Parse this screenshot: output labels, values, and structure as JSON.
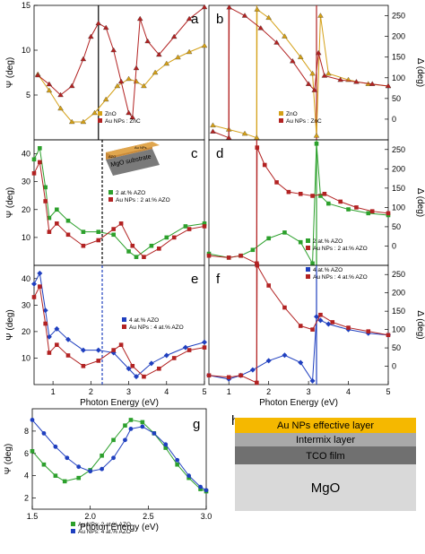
{
  "colors": {
    "zno": "#d4a017",
    "au_np": "#b22222",
    "azo2": "#2ca02c",
    "azo4": "#1f3fbf",
    "au_layer": "#f5b800",
    "intermix": "#a9a9a9",
    "tco": "#707070",
    "mgo": "#d9d9d9"
  },
  "inset": {
    "texts": [
      "MgO substrate",
      "AZO",
      "Au NPs"
    ]
  },
  "stack": {
    "layers": [
      "Au NPs effective layer",
      "Intermix layer",
      "TCO film",
      "MgO"
    ]
  },
  "chart_data": [
    {
      "panel": "a",
      "type": "line",
      "ylabel": "Ψ (deg)",
      "ylim": [
        0,
        15
      ],
      "yticks": [
        "5",
        "10",
        "15"
      ],
      "xlim": [
        0.5,
        5
      ],
      "xticks": [],
      "vline": [
        2.2
      ],
      "legend": [
        "ZnO",
        "Au NPs : ZnC"
      ],
      "series": [
        {
          "name": "ZnO",
          "color": "zno",
          "x": [
            0.6,
            0.9,
            1.2,
            1.5,
            1.8,
            2.1,
            2.4,
            2.7,
            3.0,
            3.2,
            3.4,
            3.7,
            4.0,
            4.3,
            4.6,
            5.0
          ],
          "y": [
            7.3,
            5.5,
            3.5,
            2.0,
            2.0,
            3.0,
            4.5,
            6.0,
            6.8,
            6.5,
            6.0,
            7.5,
            8.5,
            9.2,
            9.8,
            10.5
          ]
        },
        {
          "name": "Au NPs : ZnC",
          "color": "au_np",
          "x": [
            0.6,
            0.9,
            1.2,
            1.5,
            1.8,
            2.0,
            2.2,
            2.4,
            2.6,
            2.8,
            3.0,
            3.1,
            3.2,
            3.3,
            3.5,
            3.8,
            4.2,
            4.6,
            5.0
          ],
          "y": [
            7.2,
            6.2,
            5.0,
            6.0,
            9.0,
            11.5,
            13.0,
            12.5,
            10.0,
            6.5,
            3.0,
            2.5,
            8.0,
            13.5,
            11.0,
            9.5,
            11.5,
            13.5,
            14.8
          ]
        }
      ]
    },
    {
      "panel": "b",
      "type": "line",
      "y2label": "Δ (deg)",
      "ylim": [
        -50,
        275
      ],
      "yticks": [
        "0",
        "50",
        "100",
        "150",
        "200",
        "250"
      ],
      "xlim": [
        0.5,
        5
      ],
      "xticks": [],
      "vline": [
        1.0,
        1.7,
        3.2
      ],
      "legend": [
        "ZnO",
        "Au NPs : ZnC"
      ],
      "series": [
        {
          "name": "ZnO",
          "color": "zno",
          "x": [
            0.6,
            1.0,
            1.4,
            1.7,
            1.71,
            2.0,
            2.4,
            2.8,
            3.1,
            3.2,
            3.3,
            3.5,
            4.0,
            4.5,
            5.0
          ],
          "y": [
            -15,
            -25,
            -35,
            -45,
            265,
            245,
            200,
            150,
            110,
            -40,
            250,
            110,
            95,
            85,
            80
          ]
        },
        {
          "name": "Au NPs : ZnC",
          "color": "au_np",
          "x": [
            0.6,
            1.0,
            1.01,
            1.4,
            1.8,
            2.2,
            2.6,
            3.0,
            3.15,
            3.25,
            3.4,
            3.8,
            4.2,
            4.6,
            5.0
          ],
          "y": [
            -30,
            -45,
            270,
            250,
            220,
            185,
            140,
            85,
            70,
            160,
            105,
            95,
            90,
            85,
            80
          ]
        }
      ]
    },
    {
      "panel": "c",
      "type": "line",
      "ylabel": "Ψ (deg)",
      "ylim": [
        0,
        45
      ],
      "yticks": [
        "10",
        "20",
        "30",
        "40"
      ],
      "xlim": [
        0.5,
        5
      ],
      "xticks": [],
      "vline": [
        2.3
      ],
      "legend": [
        "2 at.% AZO",
        "Au NPs : 2 at.% AZO"
      ],
      "series": [
        {
          "name": "2 at.% AZO",
          "color": "azo2",
          "x": [
            0.5,
            0.65,
            0.8,
            0.9,
            1.1,
            1.4,
            1.8,
            2.2,
            2.6,
            3.0,
            3.2,
            3.6,
            4.0,
            4.5,
            5.0
          ],
          "y": [
            38,
            42,
            28,
            17,
            20,
            16,
            12,
            12,
            11,
            5,
            3,
            7,
            10,
            14,
            15
          ]
        },
        {
          "name": "Au NPs : 2 at.% AZO",
          "color": "au_np",
          "x": [
            0.5,
            0.65,
            0.8,
            0.9,
            1.1,
            1.4,
            1.8,
            2.2,
            2.6,
            2.8,
            3.1,
            3.4,
            3.8,
            4.2,
            4.6,
            5.0
          ],
          "y": [
            33,
            37,
            23,
            12,
            15,
            11,
            7,
            9,
            13,
            15,
            7,
            3,
            6,
            10,
            13,
            14
          ]
        }
      ]
    },
    {
      "panel": "d",
      "type": "line",
      "y2label": "Δ (deg)",
      "ylim": [
        -50,
        275
      ],
      "yticks": [
        "0",
        "50",
        "100",
        "150",
        "200",
        "250"
      ],
      "xlim": [
        0.5,
        5
      ],
      "xticks": [],
      "vline": [
        1.7,
        3.2
      ],
      "legend": [
        "2 at.% AZO",
        "Au NPs : 2 at.% AZO"
      ],
      "series": [
        {
          "name": "2 at.% AZO",
          "color": "azo2",
          "x": [
            0.5,
            1.0,
            1.3,
            1.6,
            2.0,
            2.4,
            2.8,
            3.1,
            3.2,
            3.3,
            3.5,
            4.0,
            4.5,
            5.0
          ],
          "y": [
            -20,
            -30,
            -25,
            -10,
            20,
            35,
            10,
            -45,
            265,
            130,
            110,
            95,
            85,
            80
          ]
        },
        {
          "name": "Au NPs : 2 at.% AZO",
          "color": "au_np",
          "x": [
            0.5,
            1.0,
            1.3,
            1.7,
            1.71,
            1.9,
            2.2,
            2.5,
            2.8,
            3.1,
            3.4,
            3.8,
            4.2,
            4.6,
            5.0
          ],
          "y": [
            -25,
            -30,
            -25,
            -45,
            255,
            210,
            165,
            140,
            135,
            130,
            135,
            115,
            100,
            90,
            85
          ]
        }
      ]
    },
    {
      "panel": "e",
      "type": "line",
      "ylabel": "Ψ (deg)",
      "xlabel": "Photon Energy (eV)",
      "ylim": [
        0,
        45
      ],
      "yticks": [
        "10",
        "20",
        "30",
        "40"
      ],
      "xlim": [
        0.5,
        5
      ],
      "xticks": [
        "1",
        "2",
        "3",
        "4",
        "5"
      ],
      "vline": [
        2.3
      ],
      "legend": [
        "4 at.% AZO",
        "Au NPs : 4 at.% AZO"
      ],
      "series": [
        {
          "name": "4 at.% AZO",
          "color": "azo4",
          "x": [
            0.5,
            0.65,
            0.8,
            0.9,
            1.1,
            1.4,
            1.8,
            2.2,
            2.6,
            3.0,
            3.2,
            3.6,
            4.0,
            4.5,
            5.0
          ],
          "y": [
            38,
            42,
            28,
            18,
            21,
            17,
            13,
            13,
            12,
            6,
            3,
            8,
            11,
            14,
            16
          ]
        },
        {
          "name": "Au NPs : 4 at.% AZO",
          "color": "au_np",
          "x": [
            0.5,
            0.65,
            0.8,
            0.9,
            1.1,
            1.4,
            1.8,
            2.2,
            2.6,
            2.8,
            3.1,
            3.4,
            3.8,
            4.2,
            4.6,
            5.0
          ],
          "y": [
            33,
            37,
            23,
            12,
            15,
            11,
            7,
            9,
            13,
            15,
            7,
            3,
            6,
            10,
            13,
            14
          ]
        }
      ]
    },
    {
      "panel": "f",
      "type": "line",
      "y2label": "Δ (deg)",
      "xlabel": "Photon Energy (eV)",
      "ylim": [
        -50,
        275
      ],
      "yticks": [
        "0",
        "50",
        "100",
        "150",
        "200",
        "250"
      ],
      "xlim": [
        0.5,
        5
      ],
      "xticks": [
        "1",
        "2",
        "3",
        "4",
        "5"
      ],
      "vline": [
        1.7,
        3.2
      ],
      "legend": [
        "4 at.% AZO",
        "Au NPs : 4 at.% AZO"
      ],
      "series": [
        {
          "name": "4 at.% AZO",
          "color": "azo4",
          "x": [
            0.5,
            1.0,
            1.3,
            1.6,
            2.0,
            2.4,
            2.8,
            3.1,
            3.2,
            3.3,
            3.5,
            4.0,
            4.5,
            5.0
          ],
          "y": [
            -25,
            -35,
            -25,
            -10,
            15,
            30,
            10,
            -40,
            135,
            125,
            115,
            100,
            90,
            85
          ]
        },
        {
          "name": "Au NPs : 4 at.% AZO",
          "color": "au_np",
          "x": [
            0.5,
            1.0,
            1.3,
            1.7,
            1.71,
            2.0,
            2.4,
            2.8,
            3.1,
            3.3,
            3.6,
            4.0,
            4.5,
            5.0
          ],
          "y": [
            -25,
            -30,
            -25,
            -45,
            275,
            220,
            160,
            110,
            100,
            140,
            120,
            105,
            95,
            85
          ]
        }
      ]
    },
    {
      "panel": "g",
      "type": "line",
      "ylabel": "Ψ (deg)",
      "xlabel": "Photon Energy (eV)",
      "ylim": [
        1,
        10
      ],
      "yticks": [
        "2",
        "4",
        "6",
        "8"
      ],
      "xlim": [
        1.5,
        3.0
      ],
      "xticks": [
        "1.5",
        "2.0",
        "2.5",
        "3.0"
      ],
      "legend": [
        "Au NPs: 2 at.% AZO",
        "Au NPs: 4 at.% AZO"
      ],
      "series": [
        {
          "name": "Au NPs: 2 at.% AZO",
          "color": "azo2",
          "x": [
            1.5,
            1.6,
            1.7,
            1.78,
            1.9,
            2.0,
            2.1,
            2.2,
            2.3,
            2.35,
            2.45,
            2.55,
            2.65,
            2.75,
            2.85,
            2.95,
            3.0
          ],
          "y": [
            6.2,
            5.0,
            4.0,
            3.5,
            3.8,
            4.5,
            5.8,
            7.2,
            8.5,
            9.0,
            8.8,
            7.8,
            6.5,
            5.0,
            3.8,
            2.8,
            2.6
          ]
        },
        {
          "name": "Au NPs: 4 at.% AZO",
          "color": "azo4",
          "x": [
            1.5,
            1.6,
            1.7,
            1.8,
            1.9,
            2.0,
            2.1,
            2.2,
            2.3,
            2.35,
            2.45,
            2.55,
            2.65,
            2.75,
            2.85,
            2.95,
            3.0
          ],
          "y": [
            9.0,
            7.8,
            6.6,
            5.6,
            4.8,
            4.4,
            4.6,
            5.6,
            7.2,
            8.2,
            8.4,
            7.8,
            6.8,
            5.4,
            4.0,
            3.0,
            2.7
          ]
        }
      ]
    }
  ]
}
